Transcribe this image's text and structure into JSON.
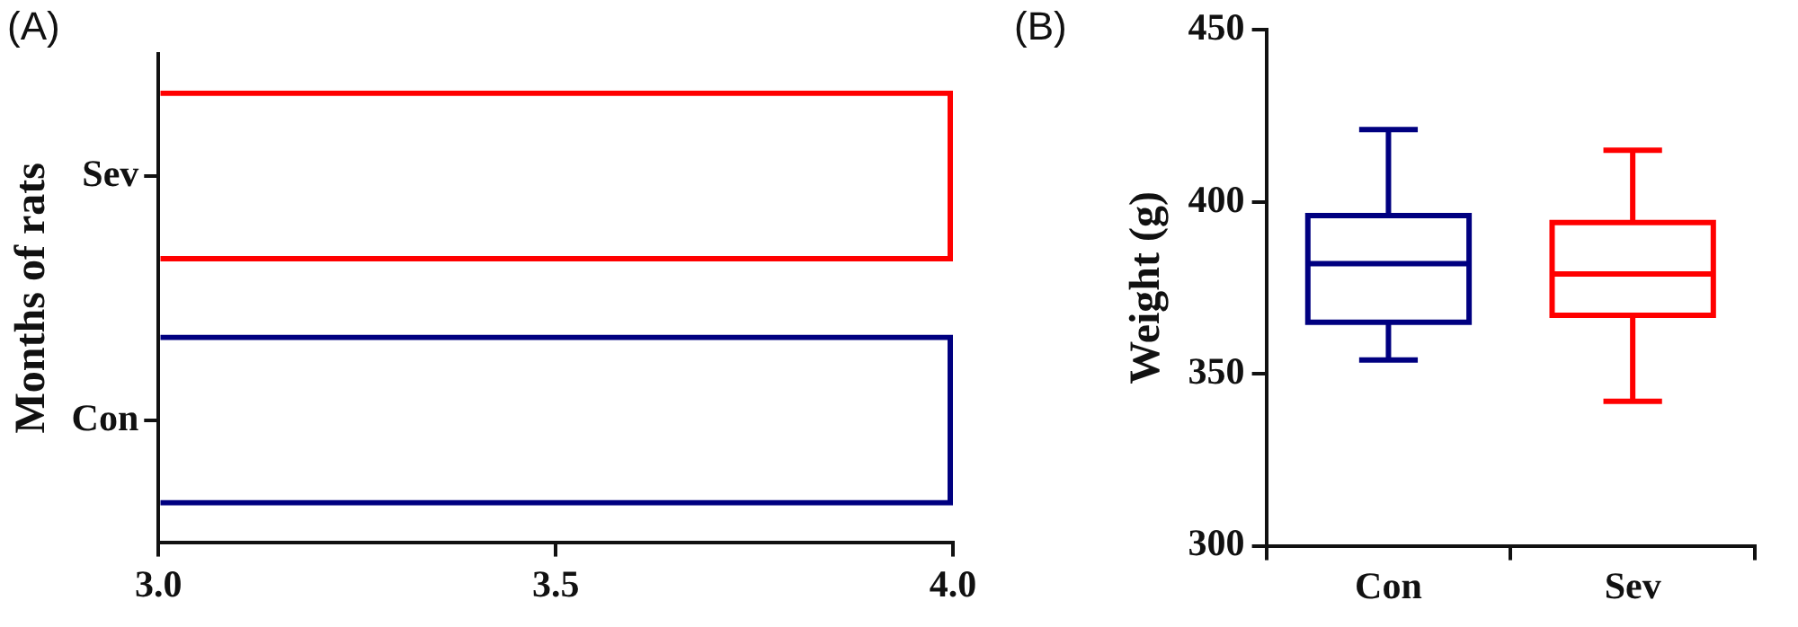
{
  "chart_data": [
    {
      "type": "bar",
      "title": "(A)",
      "orientation": "horizontal",
      "ylabel": "Months of rats",
      "categories": [
        "Sev",
        "Con"
      ],
      "values": [
        4,
        4
      ],
      "colors": [
        "#ff0000",
        "#000080"
      ],
      "xlim": [
        3,
        4
      ],
      "xticks": [
        {
          "value": 3,
          "label": "3.0"
        },
        {
          "value": 3.5,
          "label": "3.5"
        },
        {
          "value": 4,
          "label": "4.0"
        }
      ],
      "grid": false,
      "legend": false
    },
    {
      "type": "box",
      "title": "(B)",
      "ylabel": "Weight (g)",
      "categories": [
        "Con",
        "Sev"
      ],
      "colors": [
        "#000080",
        "#ff0000"
      ],
      "boxes": [
        {
          "low": 354,
          "q1": 365,
          "median": 382,
          "q3": 396,
          "high": 421
        },
        {
          "low": 342,
          "q1": 367,
          "median": 379,
          "q3": 394,
          "high": 415
        }
      ],
      "ylim": [
        300,
        450
      ],
      "yticks": [
        300,
        350,
        400,
        450
      ],
      "grid": false,
      "legend": false
    }
  ]
}
